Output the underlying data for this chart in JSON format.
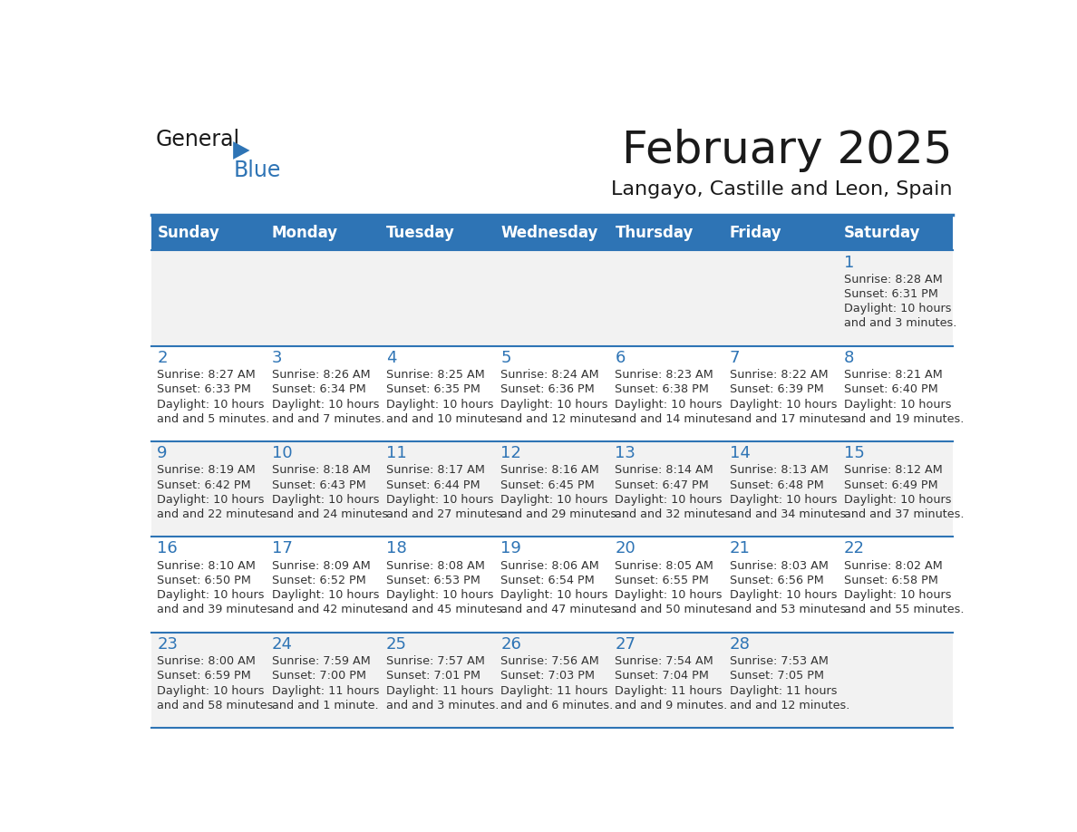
{
  "title": "February 2025",
  "subtitle": "Langayo, Castille and Leon, Spain",
  "header_bg": "#2E74B5",
  "header_text_color": "#FFFFFF",
  "day_names": [
    "Sunday",
    "Monday",
    "Tuesday",
    "Wednesday",
    "Thursday",
    "Friday",
    "Saturday"
  ],
  "cell_bg_odd": "#F2F2F2",
  "cell_bg_even": "#FFFFFF",
  "cell_text_color": "#333333",
  "separator_color": "#2E74B5",
  "days": [
    {
      "day": 1,
      "col": 6,
      "row": 0,
      "sunrise": "8:28 AM",
      "sunset": "6:31 PM",
      "daylight": "10 hours and 3 minutes."
    },
    {
      "day": 2,
      "col": 0,
      "row": 1,
      "sunrise": "8:27 AM",
      "sunset": "6:33 PM",
      "daylight": "10 hours and 5 minutes."
    },
    {
      "day": 3,
      "col": 1,
      "row": 1,
      "sunrise": "8:26 AM",
      "sunset": "6:34 PM",
      "daylight": "10 hours and 7 minutes."
    },
    {
      "day": 4,
      "col": 2,
      "row": 1,
      "sunrise": "8:25 AM",
      "sunset": "6:35 PM",
      "daylight": "10 hours and 10 minutes."
    },
    {
      "day": 5,
      "col": 3,
      "row": 1,
      "sunrise": "8:24 AM",
      "sunset": "6:36 PM",
      "daylight": "10 hours and 12 minutes."
    },
    {
      "day": 6,
      "col": 4,
      "row": 1,
      "sunrise": "8:23 AM",
      "sunset": "6:38 PM",
      "daylight": "10 hours and 14 minutes."
    },
    {
      "day": 7,
      "col": 5,
      "row": 1,
      "sunrise": "8:22 AM",
      "sunset": "6:39 PM",
      "daylight": "10 hours and 17 minutes."
    },
    {
      "day": 8,
      "col": 6,
      "row": 1,
      "sunrise": "8:21 AM",
      "sunset": "6:40 PM",
      "daylight": "10 hours and 19 minutes."
    },
    {
      "day": 9,
      "col": 0,
      "row": 2,
      "sunrise": "8:19 AM",
      "sunset": "6:42 PM",
      "daylight": "10 hours and 22 minutes."
    },
    {
      "day": 10,
      "col": 1,
      "row": 2,
      "sunrise": "8:18 AM",
      "sunset": "6:43 PM",
      "daylight": "10 hours and 24 minutes."
    },
    {
      "day": 11,
      "col": 2,
      "row": 2,
      "sunrise": "8:17 AM",
      "sunset": "6:44 PM",
      "daylight": "10 hours and 27 minutes."
    },
    {
      "day": 12,
      "col": 3,
      "row": 2,
      "sunrise": "8:16 AM",
      "sunset": "6:45 PM",
      "daylight": "10 hours and 29 minutes."
    },
    {
      "day": 13,
      "col": 4,
      "row": 2,
      "sunrise": "8:14 AM",
      "sunset": "6:47 PM",
      "daylight": "10 hours and 32 minutes."
    },
    {
      "day": 14,
      "col": 5,
      "row": 2,
      "sunrise": "8:13 AM",
      "sunset": "6:48 PM",
      "daylight": "10 hours and 34 minutes."
    },
    {
      "day": 15,
      "col": 6,
      "row": 2,
      "sunrise": "8:12 AM",
      "sunset": "6:49 PM",
      "daylight": "10 hours and 37 minutes."
    },
    {
      "day": 16,
      "col": 0,
      "row": 3,
      "sunrise": "8:10 AM",
      "sunset": "6:50 PM",
      "daylight": "10 hours and 39 minutes."
    },
    {
      "day": 17,
      "col": 1,
      "row": 3,
      "sunrise": "8:09 AM",
      "sunset": "6:52 PM",
      "daylight": "10 hours and 42 minutes."
    },
    {
      "day": 18,
      "col": 2,
      "row": 3,
      "sunrise": "8:08 AM",
      "sunset": "6:53 PM",
      "daylight": "10 hours and 45 minutes."
    },
    {
      "day": 19,
      "col": 3,
      "row": 3,
      "sunrise": "8:06 AM",
      "sunset": "6:54 PM",
      "daylight": "10 hours and 47 minutes."
    },
    {
      "day": 20,
      "col": 4,
      "row": 3,
      "sunrise": "8:05 AM",
      "sunset": "6:55 PM",
      "daylight": "10 hours and 50 minutes."
    },
    {
      "day": 21,
      "col": 5,
      "row": 3,
      "sunrise": "8:03 AM",
      "sunset": "6:56 PM",
      "daylight": "10 hours and 53 minutes."
    },
    {
      "day": 22,
      "col": 6,
      "row": 3,
      "sunrise": "8:02 AM",
      "sunset": "6:58 PM",
      "daylight": "10 hours and 55 minutes."
    },
    {
      "day": 23,
      "col": 0,
      "row": 4,
      "sunrise": "8:00 AM",
      "sunset": "6:59 PM",
      "daylight": "10 hours and 58 minutes."
    },
    {
      "day": 24,
      "col": 1,
      "row": 4,
      "sunrise": "7:59 AM",
      "sunset": "7:00 PM",
      "daylight": "11 hours and 1 minute."
    },
    {
      "day": 25,
      "col": 2,
      "row": 4,
      "sunrise": "7:57 AM",
      "sunset": "7:01 PM",
      "daylight": "11 hours and 3 minutes."
    },
    {
      "day": 26,
      "col": 3,
      "row": 4,
      "sunrise": "7:56 AM",
      "sunset": "7:03 PM",
      "daylight": "11 hours and 6 minutes."
    },
    {
      "day": 27,
      "col": 4,
      "row": 4,
      "sunrise": "7:54 AM",
      "sunset": "7:04 PM",
      "daylight": "11 hours and 9 minutes."
    },
    {
      "day": 28,
      "col": 5,
      "row": 4,
      "sunrise": "7:53 AM",
      "sunset": "7:05 PM",
      "daylight": "11 hours and 12 minutes."
    }
  ]
}
